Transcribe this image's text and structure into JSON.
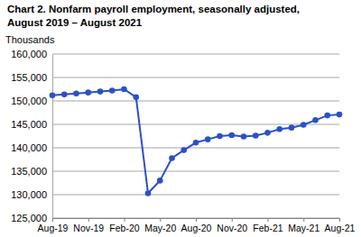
{
  "chart_data": {
    "type": "line",
    "title": "Chart 2. Nonfarm payroll employment, seasonally adjusted,",
    "subtitle": "August 2019 – August 2021",
    "y_label": "Thousands",
    "categories": [
      "Aug-19",
      null,
      null,
      "Nov-19",
      null,
      null,
      "Feb-20",
      null,
      null,
      "May-20",
      null,
      null,
      "Aug-20",
      null,
      null,
      "Nov-20",
      null,
      null,
      "Feb-21",
      null,
      null,
      "May-21",
      null,
      null,
      "Aug-21"
    ],
    "values": [
      151200,
      151400,
      151600,
      151800,
      152000,
      152200,
      152500,
      150800,
      130300,
      133000,
      137800,
      139500,
      141100,
      141800,
      142500,
      142700,
      142400,
      142600,
      143200,
      144000,
      144300,
      144900,
      145900,
      146900,
      147100
    ],
    "color": "#2b50c8",
    "marker": "circle",
    "ylim": [
      125000,
      160000
    ],
    "yticks": [
      {
        "value": 125000,
        "label": "125,000"
      },
      {
        "value": 130000,
        "label": "130,000"
      },
      {
        "value": 135000,
        "label": "135,000"
      },
      {
        "value": 140000,
        "label": "140,000"
      },
      {
        "value": 145000,
        "label": "145,000"
      },
      {
        "value": 150000,
        "label": "150,000"
      },
      {
        "value": 155000,
        "label": "155,000"
      },
      {
        "value": 160000,
        "label": "160,000"
      }
    ],
    "grid": true
  }
}
